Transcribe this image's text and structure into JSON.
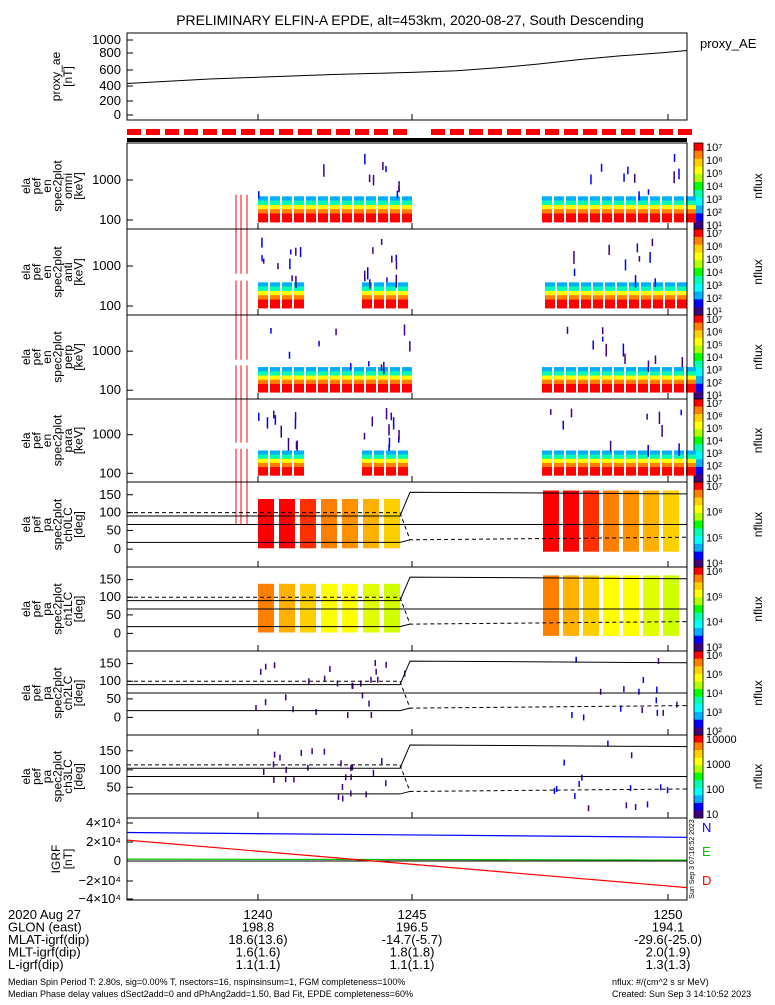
{
  "title": "PRELIMINARY ELFIN-A EPDE, alt=453km, 2020-08-27, South Descending",
  "colors": {
    "ae_line": "#000000",
    "status_red": "#ff0000",
    "grf_n": "#0000ff",
    "grf_e": "#00c000",
    "grf_d": "#ff0000",
    "colormap": [
      "#ff0000",
      "#ff7f00",
      "#ffd000",
      "#ffff00",
      "#b0ff00",
      "#00ff00",
      "#00ffb0",
      "#00ffff",
      "#00b0ff",
      "#0000ff",
      "#400080"
    ]
  },
  "panels": [
    {
      "id": "ae",
      "ylabel": [
        "proxy_ae",
        "[nT]"
      ],
      "legend": "proxy_AE",
      "ticks": [
        "1000",
        "800",
        "600",
        "400",
        "200",
        "0"
      ]
    },
    {
      "id": "en_omni",
      "ylabel": [
        "ela",
        "pef",
        "en",
        "spec2plot",
        "omni",
        "[keV]"
      ],
      "ticks": [
        "1000",
        "100"
      ],
      "cbar_label": "nflux",
      "cbar_ticks": [
        "10⁷",
        "10⁶",
        "10⁵",
        "10⁴",
        "10³",
        "10²",
        "10¹"
      ]
    },
    {
      "id": "en_anti",
      "ylabel": [
        "ela",
        "pef",
        "en",
        "spec2plot",
        "anti",
        "[keV]"
      ],
      "ticks": [
        "1000",
        "100"
      ],
      "cbar_label": "nflux",
      "cbar_ticks": [
        "10⁷",
        "10⁶",
        "10⁵",
        "10⁴",
        "10³",
        "10²",
        "10¹"
      ]
    },
    {
      "id": "en_perp",
      "ylabel": [
        "ela",
        "pef",
        "en",
        "spec2plot",
        "perp",
        "[keV]"
      ],
      "ticks": [
        "1000",
        "100"
      ],
      "cbar_label": "nflux",
      "cbar_ticks": [
        "10⁷",
        "10⁶",
        "10⁵",
        "10⁴",
        "10³",
        "10²",
        "10¹"
      ]
    },
    {
      "id": "en_para",
      "ylabel": [
        "ela",
        "pef",
        "en",
        "spec2plot",
        "para",
        "[keV]"
      ],
      "ticks": [
        "1000",
        "100"
      ],
      "cbar_label": "nflux",
      "cbar_ticks": [
        "10⁷",
        "10⁶",
        "10⁵",
        "10⁴",
        "10³",
        "10²",
        "10¹"
      ]
    },
    {
      "id": "pa_ch0",
      "ylabel": [
        "ela",
        "pef",
        "pa",
        "spec2plot",
        "ch0LC",
        "[deg]"
      ],
      "ticks": [
        "150",
        "100",
        "50",
        "0"
      ],
      "cbar_label": "nflux",
      "cbar_ticks": [
        "10⁷",
        "10⁶",
        "10⁵",
        "10⁴"
      ]
    },
    {
      "id": "pa_ch1",
      "ylabel": [
        "ela",
        "pef",
        "pa",
        "spec2plot",
        "ch1LC",
        "[deg]"
      ],
      "ticks": [
        "150",
        "100",
        "50",
        "0"
      ],
      "cbar_label": "nflux",
      "cbar_ticks": [
        "10⁶",
        "10⁵",
        "10⁴",
        "10³"
      ]
    },
    {
      "id": "pa_ch2",
      "ylabel": [
        "ela",
        "pef",
        "pa",
        "spec2plot",
        "ch2LC",
        "[deg]"
      ],
      "ticks": [
        "150",
        "100",
        "50",
        "0"
      ],
      "cbar_label": "nflux",
      "cbar_ticks": [
        "10⁶",
        "10⁵",
        "10⁴",
        "10³",
        "10²"
      ]
    },
    {
      "id": "pa_ch3",
      "ylabel": [
        "ela",
        "pef",
        "pa",
        "spec2plot",
        "ch3LC",
        "[deg]"
      ],
      "ticks": [
        "150",
        "100",
        "50"
      ],
      "cbar_label": "nflux",
      "cbar_ticks": [
        "10000",
        "1000",
        "100",
        "10"
      ]
    },
    {
      "id": "grf",
      "ylabel": [
        "IGRF",
        "[nT]"
      ],
      "ticks": [
        "4×10⁴",
        "2×10⁴",
        "0",
        "−2×10⁴",
        "−4×10⁴"
      ],
      "legend": [
        "N",
        "E",
        "D"
      ],
      "side_text": "Sun Sep  3 07:16:52 2023"
    }
  ],
  "chart_data": {
    "type": "line",
    "ae_series": {
      "name": "proxy_AE",
      "x": [
        1236.5,
        1237.5,
        1238.5,
        1239.5,
        1240.5,
        1241.5,
        1242.5,
        1243.5,
        1244.5,
        1245.5,
        1246.5,
        1247.5,
        1248.5,
        1249.5,
        1250.1
      ],
      "y": [
        420,
        450,
        480,
        500,
        520,
        540,
        555,
        570,
        590,
        630,
        680,
        740,
        790,
        830,
        860
      ],
      "ylim": [
        0,
        1000
      ]
    },
    "grf_series": [
      {
        "name": "N",
        "x": [
          1236.5,
          1250.1
        ],
        "y": [
          30000,
          25000
        ]
      },
      {
        "name": "E",
        "x": [
          1236.5,
          1250.1
        ],
        "y": [
          2000,
          1000
        ]
      },
      {
        "name": "D",
        "x": [
          1236.5,
          1250.1
        ],
        "y": [
          22000,
          -28000
        ]
      }
    ],
    "grf_ylim": [
      -45000,
      45000
    ],
    "xlim": [
      1236.5,
      1250.1
    ]
  },
  "footer": {
    "rows": [
      {
        "label": "2020 Aug 27",
        "v1": "1240",
        "v2": "1245",
        "v3": "1250"
      },
      {
        "label": "GLON (east)",
        "v1": "198.8",
        "v2": "196.5",
        "v3": "194.1"
      },
      {
        "label": "MLAT-igrf(dip)",
        "v1": "18.6(13.6)",
        "v2": "-14.7(-5.7)",
        "v3": "-29.6(-25.0)"
      },
      {
        "label": "MLT-igrf(dip)",
        "v1": "1.6(1.6)",
        "v2": "1.8(1.8)",
        "v3": "2.0(1.9)"
      },
      {
        "label": "L-igrf(dip)",
        "v1": "1.1(1.1)",
        "v2": "1.1(1.1)",
        "v3": "1.3(1.3)"
      }
    ],
    "note1": "Median Spin Period T: 2.80s, sig=0.00% T, nsectors=16, nspinsinsum=1, FGM completeness=100%",
    "note2": "Median Phase delay values dSect2add=0 and dPhAng2add=1.50, Bad Fit, EPDE completeness=60%",
    "note_right1": "nflux: #/(cm^2 s sr MeV)",
    "note_right2": "Created: Sun Sep  3 14:10:52 2023"
  }
}
